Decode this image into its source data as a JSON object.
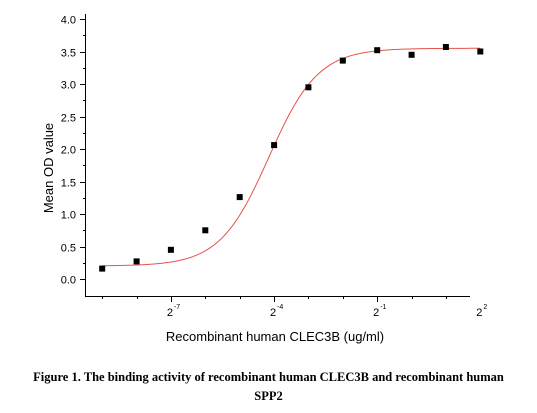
{
  "chart_data": {
    "type": "scatter",
    "xlabel": "Recombinant human  CLEC3B (ug/ml)",
    "ylabel": "Mean OD value",
    "ylim": [
      0,
      4.0
    ],
    "yticks": [
      "0.0",
      "0.5",
      "1.0",
      "1.5",
      "2.0",
      "2.5",
      "3.0",
      "3.5",
      "4.0"
    ],
    "xscale": "log2",
    "xlim_exponent": [
      -9.5,
      1.7
    ],
    "xtick_labels": [
      {
        "base": "2",
        "exp": "-7",
        "exponent": -7
      },
      {
        "base": "2",
        "exp": "-4",
        "exponent": -4
      },
      {
        "base": "2",
        "exp": "-1",
        "exponent": -1
      },
      {
        "base": "2",
        "exp": "2",
        "exponent": 2
      }
    ],
    "grid": false,
    "series": [
      {
        "color": "#000000",
        "marker": "square",
        "points": [
          {
            "log2_x": -9.0,
            "y": 0.16
          },
          {
            "log2_x": -8.0,
            "y": 0.27
          },
          {
            "log2_x": -7.0,
            "y": 0.45
          },
          {
            "log2_x": -6.0,
            "y": 0.75
          },
          {
            "log2_x": -5.0,
            "y": 1.26
          },
          {
            "log2_x": -4.0,
            "y": 2.06
          },
          {
            "log2_x": -3.0,
            "y": 2.95
          },
          {
            "log2_x": -2.0,
            "y": 3.36
          },
          {
            "log2_x": -1.0,
            "y": 3.52
          },
          {
            "log2_x": 0.0,
            "y": 3.45
          },
          {
            "log2_x": 1.0,
            "y": 3.57
          },
          {
            "log2_x": 2.0,
            "y": 3.5
          }
        ]
      }
    ],
    "fit_curve": {
      "type": "4PL",
      "color": "#e8524a",
      "bottom": 0.2,
      "top": 3.55,
      "log2_ec50": -4.15,
      "slope_per_log2": 1.4
    }
  },
  "caption": {
    "line1": "Figure 1. The binding activity of recombinant human CLEC3B and recombinant human",
    "line2": "SPP2"
  }
}
